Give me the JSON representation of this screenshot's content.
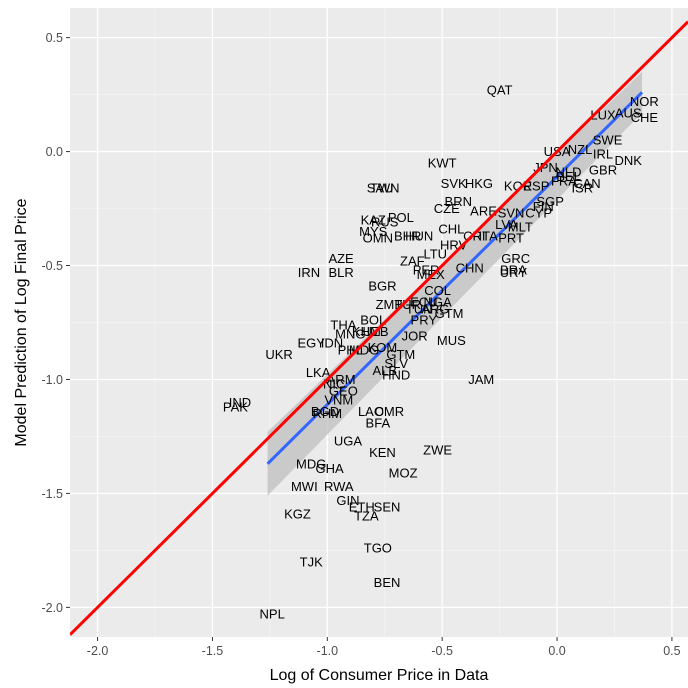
{
  "chart_data": {
    "type": "scatter",
    "xlabel": "Log of Consumer Price in Data",
    "ylabel": "Model Prediction of Log Final Price",
    "xlim": [
      -2.12,
      0.57
    ],
    "ylim": [
      -2.13,
      0.63
    ],
    "x_ticks": [
      -2.0,
      -1.5,
      -1.0,
      -0.5,
      0.0,
      0.5
    ],
    "y_ticks": [
      -2.0,
      -1.5,
      -1.0,
      -0.5,
      0.0,
      0.5
    ],
    "x_tick_labels": [
      "-2.0",
      "-1.5",
      "-1.0",
      "-0.5",
      "0.0",
      "0.5"
    ],
    "y_tick_labels": [
      "-2.0",
      "-1.5",
      "-1.0",
      "-0.5",
      "0.0",
      "0.5"
    ],
    "grid": true,
    "background": "#ebebeb",
    "colors": {
      "identity_line": "#ff0000",
      "fit_line": "#3366ff",
      "confidence_band": "#bfbfbf"
    },
    "reference_line": {
      "name": "45-degree line",
      "slope": 1,
      "intercept": 0
    },
    "fit_line": {
      "x": [
        -1.26,
        0.37
      ],
      "y": [
        -1.37,
        0.26
      ],
      "se_half_width": [
        0.14,
        0.09
      ]
    },
    "points": [
      {
        "label": "QAT",
        "x": -0.25,
        "y": 0.27
      },
      {
        "label": "NOR",
        "x": 0.38,
        "y": 0.22
      },
      {
        "label": "LUX",
        "x": 0.2,
        "y": 0.16
      },
      {
        "label": "AUS",
        "x": 0.31,
        "y": 0.17
      },
      {
        "label": "CHE",
        "x": 0.38,
        "y": 0.15
      },
      {
        "label": "SWE",
        "x": 0.22,
        "y": 0.05
      },
      {
        "label": "USA",
        "x": 0.0,
        "y": 0.0
      },
      {
        "label": "NZL",
        "x": 0.1,
        "y": 0.01
      },
      {
        "label": "IRL",
        "x": 0.2,
        "y": -0.01
      },
      {
        "label": "DNK",
        "x": 0.31,
        "y": -0.04
      },
      {
        "label": "GBR",
        "x": 0.2,
        "y": -0.08
      },
      {
        "label": "JPN",
        "x": -0.05,
        "y": -0.07
      },
      {
        "label": "NLD",
        "x": 0.05,
        "y": -0.09
      },
      {
        "label": "BEL",
        "x": 0.05,
        "y": -0.11
      },
      {
        "label": "FRA",
        "x": 0.03,
        "y": -0.13
      },
      {
        "label": "KWT",
        "x": -0.5,
        "y": -0.05
      },
      {
        "label": "SVK",
        "x": -0.45,
        "y": -0.14
      },
      {
        "label": "HKG",
        "x": -0.34,
        "y": -0.14
      },
      {
        "label": "KOR",
        "x": -0.17,
        "y": -0.15
      },
      {
        "label": "ESP",
        "x": -0.09,
        "y": -0.15
      },
      {
        "label": "CAN",
        "x": 0.13,
        "y": -0.14
      },
      {
        "label": "ISR",
        "x": 0.11,
        "y": -0.16
      },
      {
        "label": "SAU",
        "x": -0.77,
        "y": -0.16
      },
      {
        "label": "TWN",
        "x": -0.75,
        "y": -0.16
      },
      {
        "label": "BRN",
        "x": -0.43,
        "y": -0.22
      },
      {
        "label": "SGP",
        "x": -0.03,
        "y": -0.22
      },
      {
        "label": "FIN",
        "x": -0.06,
        "y": -0.24
      },
      {
        "label": "CZE",
        "x": -0.48,
        "y": -0.25
      },
      {
        "label": "ARE",
        "x": -0.32,
        "y": -0.26
      },
      {
        "label": "SVN",
        "x": -0.2,
        "y": -0.27
      },
      {
        "label": "CYP",
        "x": -0.08,
        "y": -0.27
      },
      {
        "label": "KAZ",
        "x": -0.8,
        "y": -0.3
      },
      {
        "label": "POL",
        "x": -0.68,
        "y": -0.29
      },
      {
        "label": "RUS",
        "x": -0.75,
        "y": -0.31
      },
      {
        "label": "MYS",
        "x": -0.8,
        "y": -0.35
      },
      {
        "label": "OMN",
        "x": -0.78,
        "y": -0.38
      },
      {
        "label": "BHR",
        "x": -0.65,
        "y": -0.37
      },
      {
        "label": "HUN",
        "x": -0.6,
        "y": -0.37
      },
      {
        "label": "CHL",
        "x": -0.46,
        "y": -0.34
      },
      {
        "label": "CRI",
        "x": -0.36,
        "y": -0.37
      },
      {
        "label": "ITA",
        "x": -0.3,
        "y": -0.37
      },
      {
        "label": "MLT",
        "x": -0.16,
        "y": -0.33
      },
      {
        "label": "GRC",
        "x": -0.18,
        "y": -0.47
      },
      {
        "label": "PRT",
        "x": -0.2,
        "y": -0.38
      },
      {
        "label": "LVA",
        "x": -0.22,
        "y": -0.32
      },
      {
        "label": "HRV",
        "x": -0.45,
        "y": -0.41
      },
      {
        "label": "AZE",
        "x": -0.94,
        "y": -0.47
      },
      {
        "label": "IRN",
        "x": -1.08,
        "y": -0.53
      },
      {
        "label": "BLR",
        "x": -0.94,
        "y": -0.53
      },
      {
        "label": "ZAF",
        "x": -0.63,
        "y": -0.48
      },
      {
        "label": "LTU",
        "x": -0.53,
        "y": -0.45
      },
      {
        "label": "PER",
        "x": -0.57,
        "y": -0.52
      },
      {
        "label": "MEX",
        "x": -0.55,
        "y": -0.54
      },
      {
        "label": "CHN",
        "x": -0.38,
        "y": -0.51
      },
      {
        "label": "BRA",
        "x": -0.19,
        "y": -0.52
      },
      {
        "label": "URY",
        "x": -0.19,
        "y": -0.53
      },
      {
        "label": "BGR",
        "x": -0.76,
        "y": -0.59
      },
      {
        "label": "COL",
        "x": -0.52,
        "y": -0.61
      },
      {
        "label": "ZMB",
        "x": -0.73,
        "y": -0.67
      },
      {
        "label": "TUR",
        "x": -0.65,
        "y": -0.67
      },
      {
        "label": "ECU",
        "x": -0.58,
        "y": -0.66
      },
      {
        "label": "NGA",
        "x": -0.52,
        "y": -0.66
      },
      {
        "label": "TUN",
        "x": -0.6,
        "y": -0.69
      },
      {
        "label": "ARG",
        "x": -0.53,
        "y": -0.69
      },
      {
        "label": "GTM",
        "x": -0.47,
        "y": -0.71
      },
      {
        "label": "PRY",
        "x": -0.58,
        "y": -0.74
      },
      {
        "label": "BOL",
        "x": -0.8,
        "y": -0.74
      },
      {
        "label": "THA",
        "x": -0.93,
        "y": -0.76
      },
      {
        "label": "MNG",
        "x": -0.9,
        "y": -0.8
      },
      {
        "label": "KHM",
        "x": -0.83,
        "y": -0.79
      },
      {
        "label": "UZB",
        "x": -0.79,
        "y": -0.79
      },
      {
        "label": "JOR",
        "x": -0.62,
        "y": -0.81
      },
      {
        "label": "MUS",
        "x": -0.46,
        "y": -0.83
      },
      {
        "label": "EGY",
        "x": -1.07,
        "y": -0.84
      },
      {
        "label": "IDN",
        "x": -0.98,
        "y": -0.84
      },
      {
        "label": "PHL",
        "x": -0.9,
        "y": -0.87
      },
      {
        "label": "MDG",
        "x": -0.84,
        "y": -0.87
      },
      {
        "label": "KOM",
        "x": -0.76,
        "y": -0.86
      },
      {
        "label": "UKR",
        "x": -1.21,
        "y": -0.89
      },
      {
        "label": "GTM",
        "x": -0.68,
        "y": -0.89
      },
      {
        "label": "SLV",
        "x": -0.7,
        "y": -0.93
      },
      {
        "label": "LKA",
        "x": -1.04,
        "y": -0.97
      },
      {
        "label": "ARM",
        "x": -0.94,
        "y": -1.0
      },
      {
        "label": "NIC",
        "x": -0.97,
        "y": -1.02
      },
      {
        "label": "ALB",
        "x": -0.75,
        "y": -0.96
      },
      {
        "label": "HND",
        "x": -0.7,
        "y": -0.98
      },
      {
        "label": "JAM",
        "x": -0.33,
        "y": -1.0
      },
      {
        "label": "GEO",
        "x": -0.93,
        "y": -1.05
      },
      {
        "label": "VNM",
        "x": -0.95,
        "y": -1.09
      },
      {
        "label": "IND",
        "x": -1.38,
        "y": -1.1
      },
      {
        "label": "PAK",
        "x": -1.4,
        "y": -1.12
      },
      {
        "label": "BGD",
        "x": -1.01,
        "y": -1.14
      },
      {
        "label": "RHM",
        "x": -1.0,
        "y": -1.15
      },
      {
        "label": "LAO",
        "x": -0.81,
        "y": -1.14
      },
      {
        "label": "CMR",
        "x": -0.73,
        "y": -1.14
      },
      {
        "label": "BFA",
        "x": -0.78,
        "y": -1.19
      },
      {
        "label": "UGA",
        "x": -0.91,
        "y": -1.27
      },
      {
        "label": "KEN",
        "x": -0.76,
        "y": -1.32
      },
      {
        "label": "ZWE",
        "x": -0.52,
        "y": -1.31
      },
      {
        "label": "MDG",
        "x": -1.07,
        "y": -1.37
      },
      {
        "label": "GHA",
        "x": -0.99,
        "y": -1.39
      },
      {
        "label": "MOZ",
        "x": -0.67,
        "y": -1.41
      },
      {
        "label": "MWI",
        "x": -1.1,
        "y": -1.47
      },
      {
        "label": "RWA",
        "x": -0.95,
        "y": -1.47
      },
      {
        "label": "GIN",
        "x": -0.91,
        "y": -1.53
      },
      {
        "label": "ETH",
        "x": -0.85,
        "y": -1.56
      },
      {
        "label": "SEN",
        "x": -0.74,
        "y": -1.56
      },
      {
        "label": "KGZ",
        "x": -1.13,
        "y": -1.59
      },
      {
        "label": "TZA",
        "x": -0.83,
        "y": -1.6
      },
      {
        "label": "TGO",
        "x": -0.78,
        "y": -1.74
      },
      {
        "label": "TJK",
        "x": -1.07,
        "y": -1.8
      },
      {
        "label": "BEN",
        "x": -0.74,
        "y": -1.89
      },
      {
        "label": "NPL",
        "x": -1.24,
        "y": -2.03
      }
    ]
  }
}
